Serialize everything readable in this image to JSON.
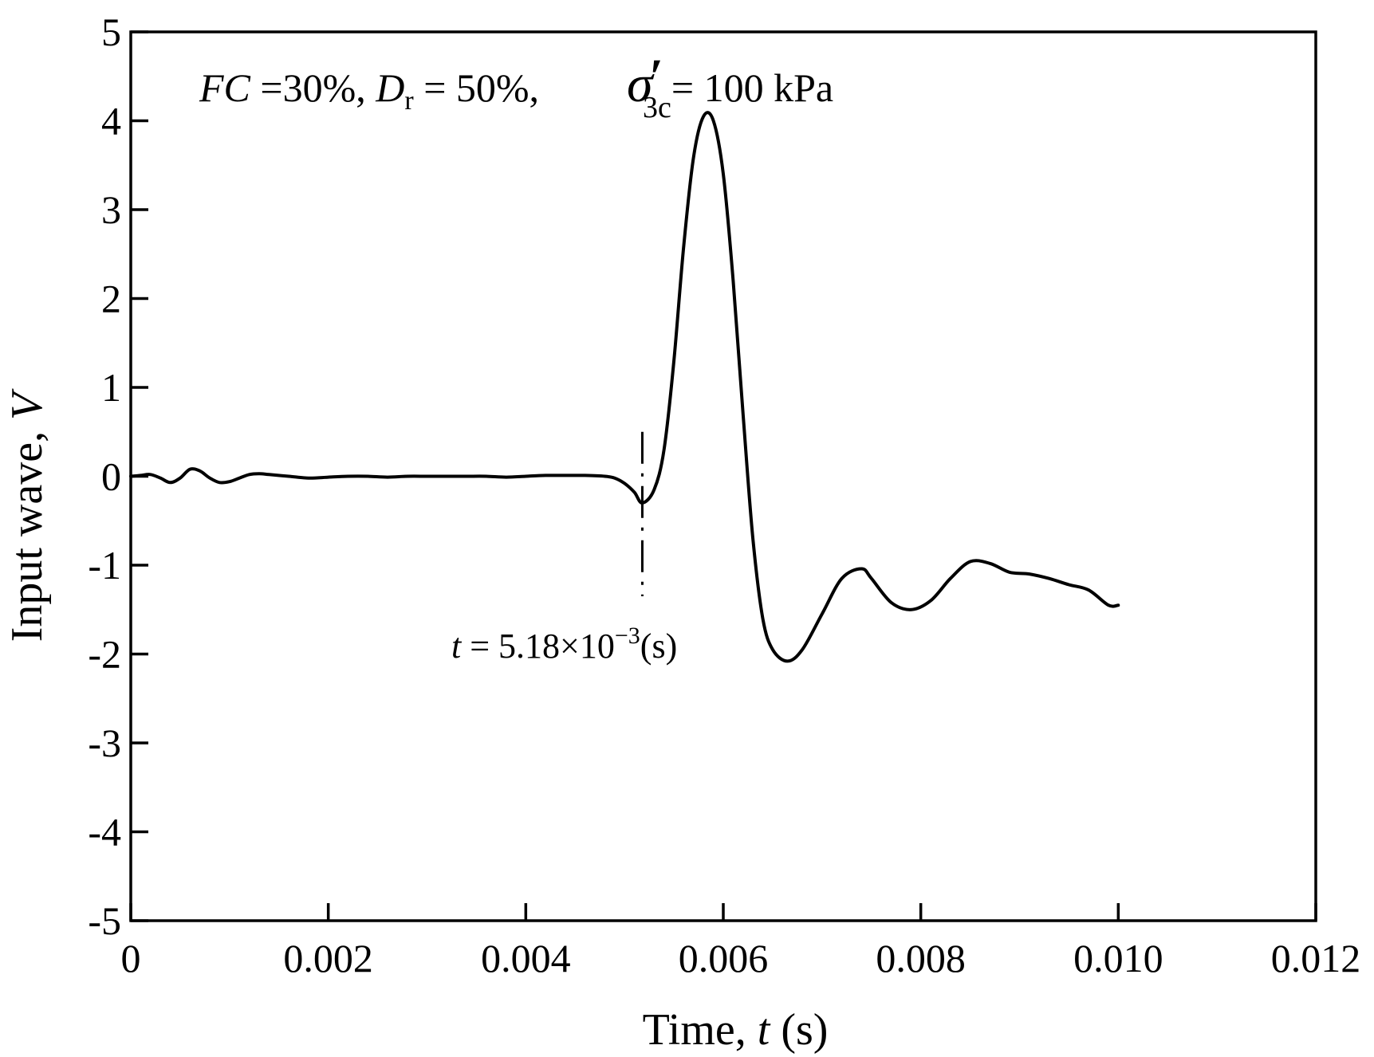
{
  "chart_data": {
    "type": "line",
    "xlabel": {
      "prefix": "Time, ",
      "var": "t",
      "suffix": " (s)"
    },
    "ylabel": {
      "prefix": "Input wave, ",
      "var": "V"
    },
    "xlim": [
      0,
      0.012
    ],
    "ylim": [
      -5,
      5
    ],
    "x_ticks": [
      0,
      0.002,
      0.004,
      0.006,
      0.008,
      0.01,
      0.012
    ],
    "x_tick_labels": [
      "0",
      "0.002",
      "0.004",
      "0.006",
      "0.008",
      "0.010",
      "0.012"
    ],
    "y_ticks": [
      -5,
      -4,
      -3,
      -2,
      -1,
      0,
      1,
      2,
      3,
      4,
      5
    ],
    "y_tick_labels": [
      "-5",
      "-4",
      "-3",
      "-2",
      "-1",
      "0",
      "1",
      "2",
      "3",
      "4",
      "5"
    ],
    "grid": false,
    "condition_text": {
      "fc_var": "FC",
      "fc_val": " =30%, ",
      "dr_var": "D",
      "dr_sub": "r",
      "dr_val": " = 50%, ",
      "sigma": "σ",
      "prime": "′",
      "sigma_sub": "3c",
      "sigma_val": "= 100 kPa"
    },
    "marker": {
      "x": 0.00518,
      "label_var": "t",
      "label_eq": " = 5.18×10",
      "label_exp": "−3",
      "label_unit": "(s)"
    },
    "series": [
      {
        "color": "#000000",
        "points": [
          [
            0,
            0
          ],
          [
            0.0001,
            0.01
          ],
          [
            0.0002,
            0.02
          ],
          [
            0.0003,
            -0.02
          ],
          [
            0.0004,
            -0.07
          ],
          [
            0.0005,
            -0.02
          ],
          [
            0.0006,
            0.08
          ],
          [
            0.0007,
            0.06
          ],
          [
            0.0008,
            -0.02
          ],
          [
            0.0009,
            -0.07
          ],
          [
            0.001,
            -0.06
          ],
          [
            0.0011,
            -0.02
          ],
          [
            0.0012,
            0.02
          ],
          [
            0.0013,
            0.03
          ],
          [
            0.0014,
            0.02
          ],
          [
            0.0016,
            0.0
          ],
          [
            0.0018,
            -0.02
          ],
          [
            0.002,
            -0.01
          ],
          [
            0.0022,
            0.0
          ],
          [
            0.0024,
            0.0
          ],
          [
            0.0026,
            -0.01
          ],
          [
            0.0028,
            0.0
          ],
          [
            0.003,
            0.0
          ],
          [
            0.0032,
            0.0
          ],
          [
            0.0034,
            0.0
          ],
          [
            0.0036,
            0.0
          ],
          [
            0.0038,
            -0.01
          ],
          [
            0.004,
            0.0
          ],
          [
            0.0042,
            0.01
          ],
          [
            0.0044,
            0.01
          ],
          [
            0.0046,
            0.01
          ],
          [
            0.0048,
            0.0
          ],
          [
            0.0049,
            -0.02
          ],
          [
            0.005,
            -0.08
          ],
          [
            0.0051,
            -0.18
          ],
          [
            0.00518,
            -0.3
          ],
          [
            0.0053,
            -0.15
          ],
          [
            0.0054,
            0.3
          ],
          [
            0.0055,
            1.3
          ],
          [
            0.0056,
            2.6
          ],
          [
            0.0057,
            3.6
          ],
          [
            0.0058,
            4.05
          ],
          [
            0.0059,
            4.0
          ],
          [
            0.006,
            3.4
          ],
          [
            0.0061,
            2.2
          ],
          [
            0.0062,
            0.7
          ],
          [
            0.0063,
            -0.7
          ],
          [
            0.0064,
            -1.6
          ],
          [
            0.0065,
            -1.95
          ],
          [
            0.00665,
            -2.08
          ],
          [
            0.0068,
            -1.95
          ],
          [
            0.007,
            -1.55
          ],
          [
            0.0072,
            -1.15
          ],
          [
            0.0074,
            -1.04
          ],
          [
            0.0075,
            -1.15
          ],
          [
            0.0077,
            -1.42
          ],
          [
            0.0079,
            -1.5
          ],
          [
            0.0081,
            -1.4
          ],
          [
            0.0083,
            -1.15
          ],
          [
            0.0085,
            -0.96
          ],
          [
            0.0087,
            -0.98
          ],
          [
            0.0089,
            -1.08
          ],
          [
            0.0091,
            -1.1
          ],
          [
            0.0093,
            -1.15
          ],
          [
            0.0095,
            -1.22
          ],
          [
            0.0097,
            -1.28
          ],
          [
            0.0099,
            -1.45
          ],
          [
            0.01,
            -1.45
          ]
        ]
      }
    ]
  }
}
